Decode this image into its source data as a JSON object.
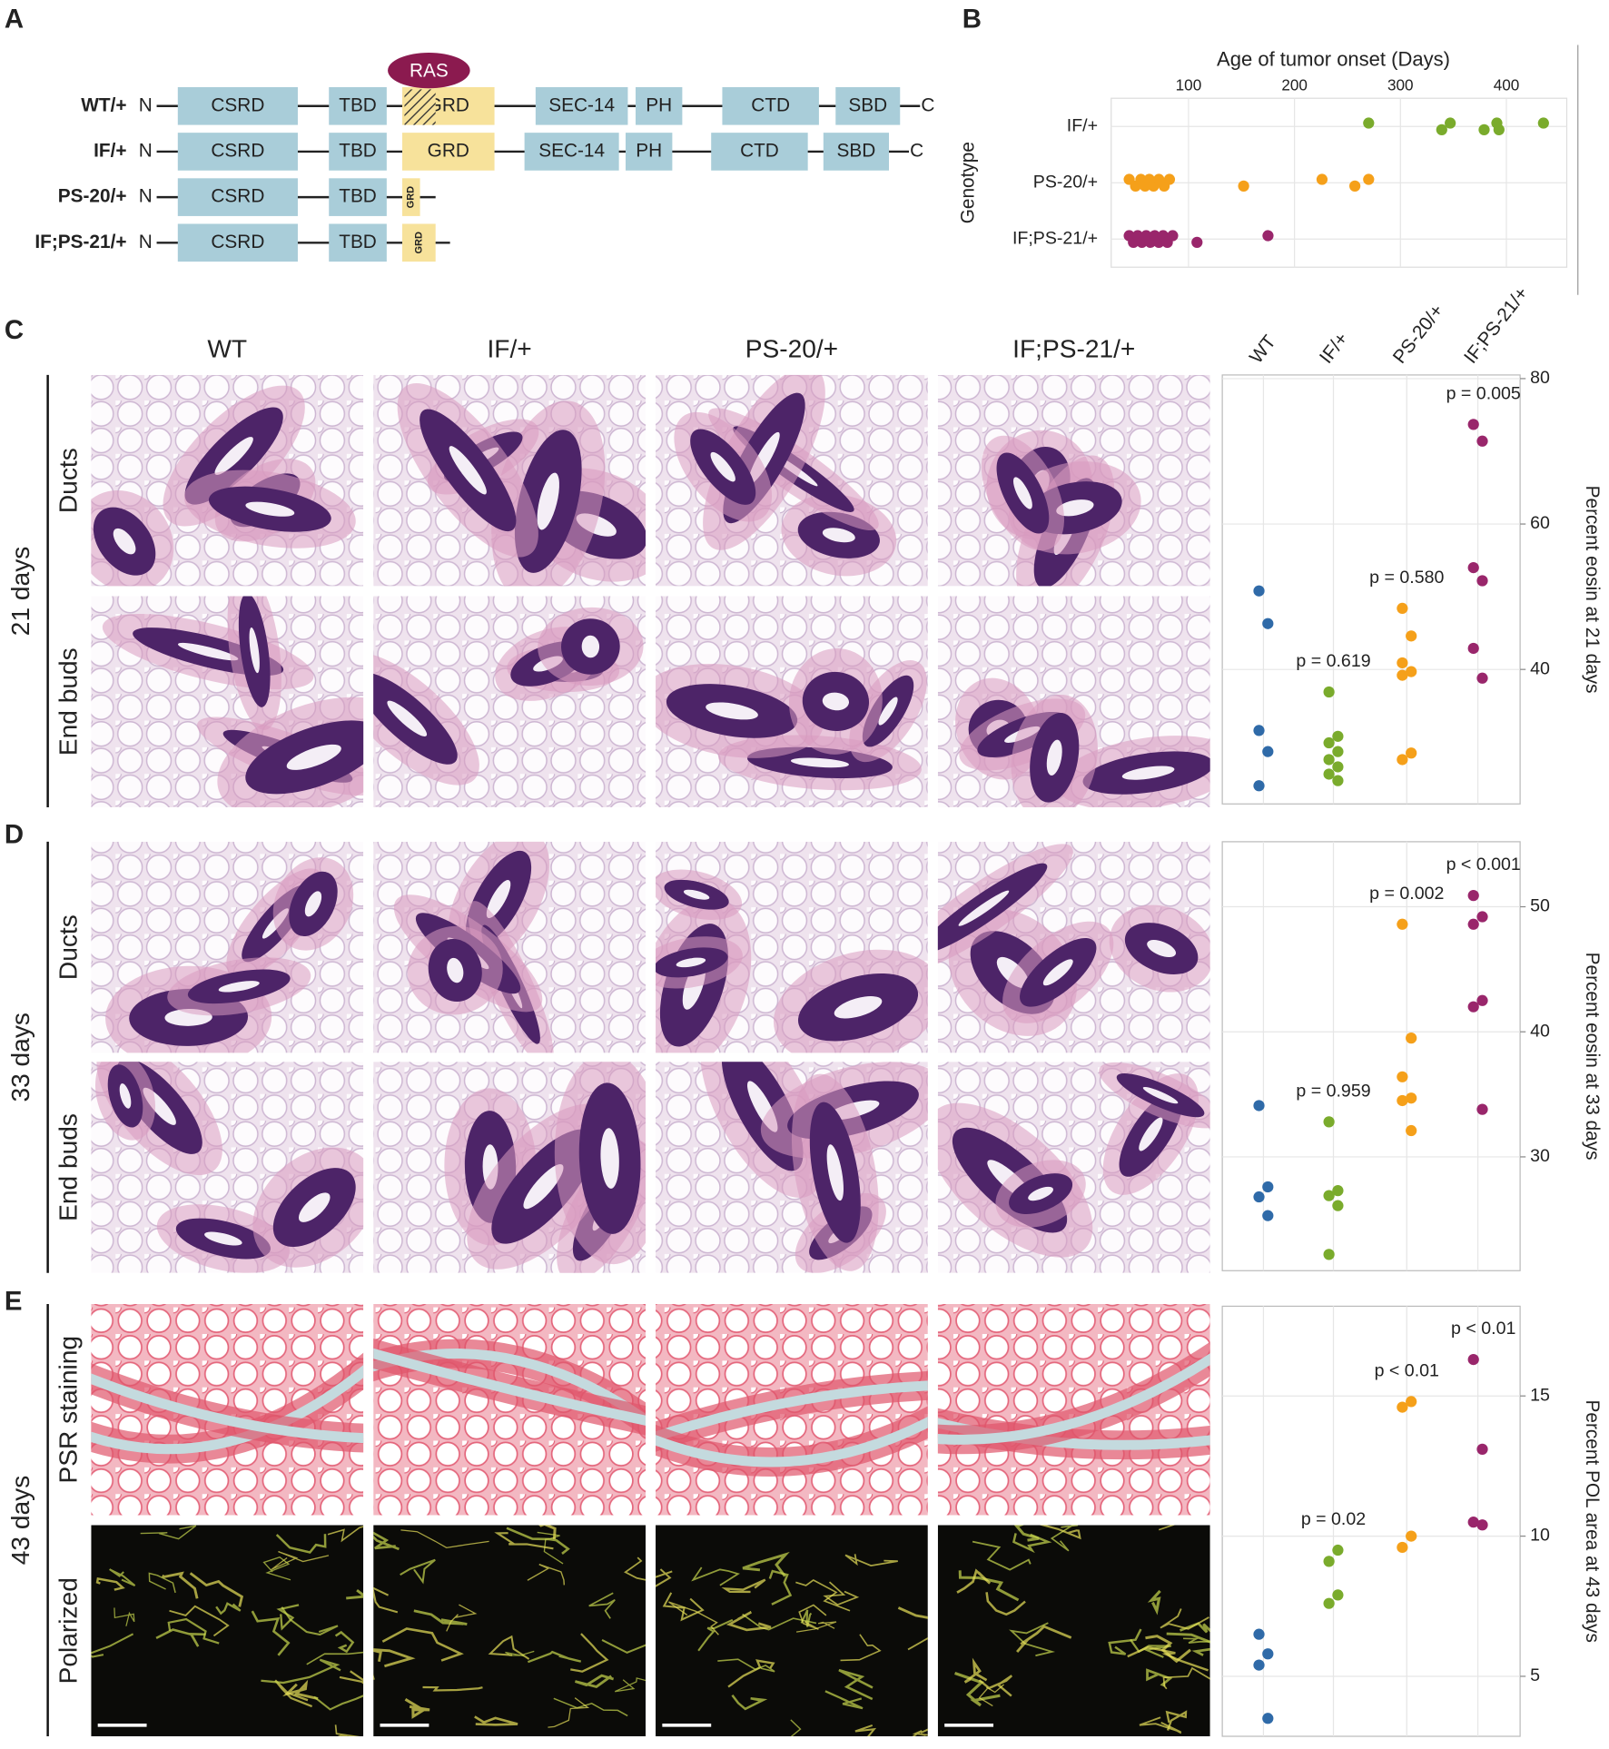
{
  "panel_labels": [
    "A",
    "B",
    "C",
    "D",
    "E"
  ],
  "domain_diagram": {
    "ras_label": "RAS",
    "rows": [
      {
        "label": "WT/+",
        "start": "N",
        "domains": [
          "CSRD",
          "TBD",
          "GRD",
          "SEC-14",
          "PH",
          "CTD",
          "SBD"
        ],
        "end": "C"
      },
      {
        "label": "IF/+",
        "start": "N",
        "domains": [
          "CSRD",
          "TBD",
          "GRD",
          "SEC-14",
          "PH",
          "CTD",
          "SBD"
        ],
        "end": "C"
      },
      {
        "label": "PS-20/+",
        "start": "N",
        "domains": [
          "CSRD",
          "TBD",
          "GRD"
        ]
      },
      {
        "label": "IF;PS-21/+",
        "start": "N",
        "domains": [
          "CSRD",
          "TBD",
          "GRD"
        ]
      }
    ]
  },
  "micrographs": {
    "columns": [
      "WT",
      "IF/+",
      "PS-20/+",
      "IF;PS-21/+"
    ],
    "sections": [
      {
        "label": "21 days",
        "rows": [
          "Ducts",
          "End buds"
        ]
      },
      {
        "label": "33 days",
        "rows": [
          "Ducts",
          "End buds"
        ]
      },
      {
        "label": "43 days",
        "rows": [
          "PSR staining",
          "Polarized"
        ]
      }
    ]
  },
  "chart_data": [
    {
      "type": "scatter",
      "xlabel": "Age of tumor onset (Days)",
      "ylabel": "Genotype",
      "categories": [
        "IF/+",
        "PS-20/+",
        "IF;PS-21/+"
      ],
      "values": [
        [
          270,
          339,
          347,
          379,
          391,
          393,
          435
        ],
        [
          44,
          50,
          55,
          59,
          63,
          67,
          72,
          77,
          82,
          152,
          226,
          257,
          270
        ],
        [
          44,
          48,
          52,
          56,
          60,
          64,
          68,
          72,
          76,
          80,
          85,
          108,
          175
        ]
      ],
      "colors": [
        "#7aab2c",
        "#f5a01a",
        "#99266b"
      ],
      "xlim": [
        27,
        457
      ],
      "xticks": [
        100,
        200,
        300,
        400
      ],
      "grid": true
    },
    {
      "type": "scatter",
      "ylabel": "Percent eosin at 21 days",
      "categories": [
        "WT",
        "IF/+",
        "PS-20/+",
        "IF;PS-21/+"
      ],
      "values": [
        [
          50.8,
          46.3,
          31.6,
          28.7,
          24.0
        ],
        [
          36.9,
          30.8,
          29.9,
          28.7,
          27.6,
          26.6,
          25.6,
          24.7
        ],
        [
          48.4,
          44.6,
          40.9,
          39.7,
          39.2,
          28.5,
          27.6
        ],
        [
          73.7,
          71.4,
          54.0,
          52.2,
          42.9,
          38.8
        ]
      ],
      "colors": [
        "#2f6aa8",
        "#7aab2c",
        "#f5a01a",
        "#99266b"
      ],
      "ylim": [
        21.5,
        80.5
      ],
      "yticks": [
        40,
        60,
        80
      ],
      "grid": true,
      "annotations": [
        "p = 0.619",
        "p = 0.580",
        "p = 0.005"
      ]
    },
    {
      "type": "scatter",
      "ylabel": "Percent eosin at 33 days",
      "values": [
        [
          34.1,
          27.6,
          26.8,
          25.3
        ],
        [
          32.8,
          27.3,
          26.9,
          26.1,
          22.2
        ],
        [
          48.6,
          39.5,
          36.4,
          34.7,
          34.5,
          32.1
        ],
        [
          50.9,
          49.2,
          48.6,
          42.5,
          42.0,
          33.8
        ]
      ],
      "colors": [
        "#2f6aa8",
        "#7aab2c",
        "#f5a01a",
        "#99266b"
      ],
      "ylim": [
        20.9,
        55.2
      ],
      "yticks": [
        30,
        40,
        50
      ],
      "grid": true,
      "annotations": [
        "p = 0.959",
        "p = 0.002",
        "p < 0.001"
      ]
    },
    {
      "type": "scatter",
      "ylabel": "Percent POL area at 43 days",
      "values": [
        [
          5.4,
          5.8,
          6.5,
          3.5
        ],
        [
          9.1,
          9.5,
          7.6,
          7.9
        ],
        [
          14.6,
          14.8,
          9.6,
          10.0
        ],
        [
          16.3,
          13.1,
          10.5,
          10.4
        ]
      ],
      "colors": [
        "#2f6aa8",
        "#7aab2c",
        "#f5a01a",
        "#99266b"
      ],
      "ylim": [
        2.86,
        18.2
      ],
      "yticks": [
        5,
        10,
        15
      ],
      "grid": true,
      "annotations": [
        "p = 0.02",
        "p < 0.01",
        "p < 0.01"
      ]
    }
  ]
}
